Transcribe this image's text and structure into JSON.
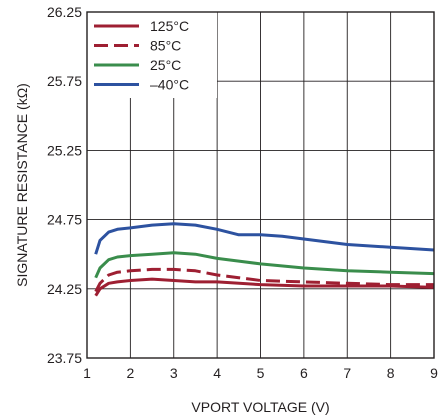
{
  "chart_data": {
    "type": "line",
    "title": "",
    "xlabel": "VPORT VOLTAGE (V)",
    "ylabel": "SIGNATURE RESISTANCE (kΩ)",
    "xlim": [
      1,
      9
    ],
    "ylim": [
      23.75,
      26.25
    ],
    "x_ticks": [
      "1",
      "2",
      "3",
      "4",
      "5",
      "6",
      "7",
      "8",
      "9"
    ],
    "y_ticks": [
      "23.75",
      "24.25",
      "24.75",
      "25.25",
      "25.75",
      "26.25"
    ],
    "grid": true,
    "legend_position": "top-left",
    "series": [
      {
        "name": "125°C",
        "color": "#9e1f32",
        "dash": "solid",
        "x": [
          1.2,
          1.3,
          1.5,
          1.7,
          2.0,
          2.5,
          3.0,
          3.5,
          4.0,
          5.0,
          6.0,
          7.0,
          8.0,
          9.0
        ],
        "y": [
          24.2,
          24.25,
          24.29,
          24.3,
          24.31,
          24.32,
          24.31,
          24.3,
          24.3,
          24.28,
          24.27,
          24.27,
          24.27,
          24.26
        ]
      },
      {
        "name": "85°C",
        "color": "#9e1f32",
        "dash": "dashed",
        "x": [
          1.2,
          1.3,
          1.5,
          1.7,
          2.0,
          2.5,
          3.0,
          3.5,
          4.0,
          4.5,
          5.0,
          6.0,
          7.0,
          8.0,
          9.0
        ],
        "y": [
          24.23,
          24.29,
          24.35,
          24.37,
          24.38,
          24.39,
          24.39,
          24.38,
          24.35,
          24.33,
          24.31,
          24.3,
          24.29,
          24.28,
          24.28
        ]
      },
      {
        "name": "25°C",
        "color": "#3a8d4c",
        "dash": "solid",
        "x": [
          1.2,
          1.3,
          1.5,
          1.7,
          2.0,
          2.5,
          3.0,
          3.5,
          4.0,
          4.5,
          5.0,
          6.0,
          7.0,
          8.0,
          9.0
        ],
        "y": [
          24.33,
          24.4,
          24.46,
          24.48,
          24.49,
          24.5,
          24.51,
          24.5,
          24.47,
          24.45,
          24.43,
          24.4,
          24.38,
          24.37,
          24.36
        ]
      },
      {
        "name": "–40°C",
        "color": "#2d52a0",
        "dash": "solid",
        "x": [
          1.2,
          1.3,
          1.5,
          1.7,
          2.0,
          2.5,
          3.0,
          3.5,
          4.0,
          4.5,
          5.0,
          5.5,
          6.0,
          7.0,
          8.0,
          9.0
        ],
        "y": [
          24.5,
          24.6,
          24.66,
          24.68,
          24.69,
          24.71,
          24.72,
          24.71,
          24.68,
          24.64,
          24.64,
          24.63,
          24.61,
          24.57,
          24.55,
          24.53
        ]
      }
    ]
  }
}
